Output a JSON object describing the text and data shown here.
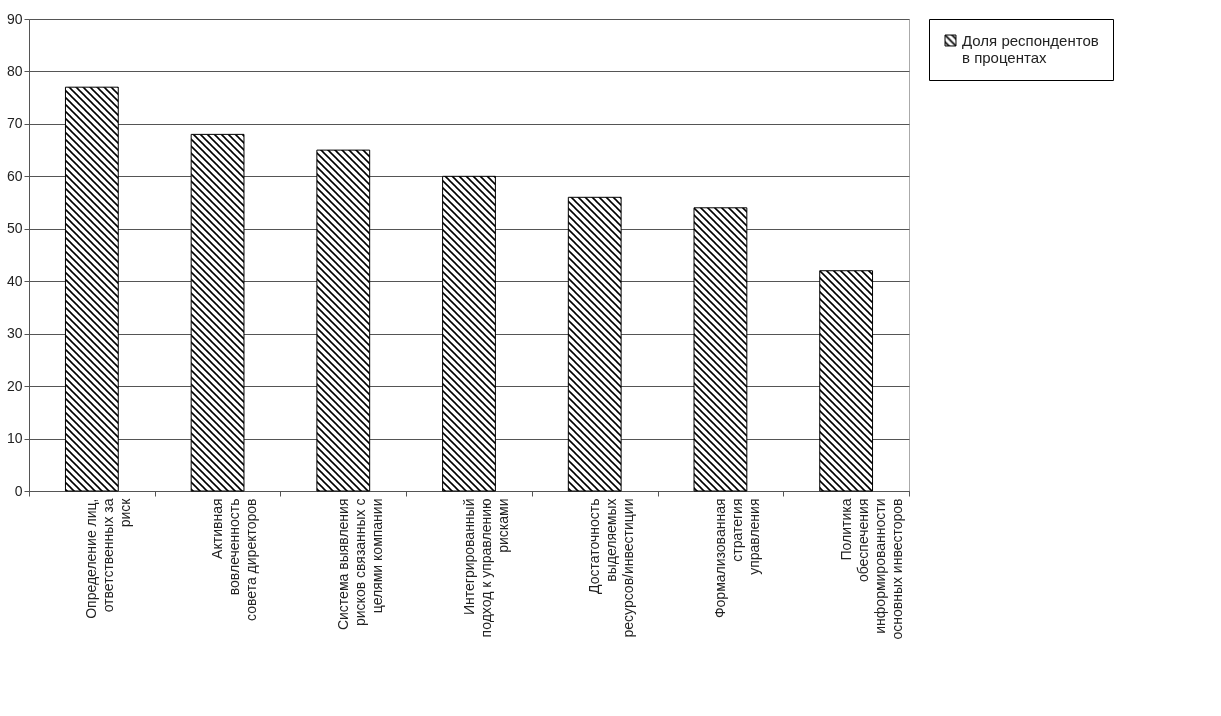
{
  "chart_data": {
    "type": "bar",
    "categories": [
      "Определение лиц, ответственных за риск",
      "Активная вовлеченность совета директоров",
      "Система выявления рисков связанных с целями компании",
      "Интегрированный подход к управлению рисками",
      "Достаточность выделяемых ресурсов/инвестиции",
      "Формализованная стратегия управления",
      "Политика обеспечения информированности основных инвесторов"
    ],
    "series": [
      {
        "name": "Доля респондентов в процентах",
        "color": "#000000",
        "values": [
          77,
          68,
          65,
          60,
          56,
          54,
          42
        ]
      }
    ],
    "ylim": [
      0,
      90
    ],
    "yticks": [
      0,
      10,
      20,
      30,
      40,
      50,
      60,
      70,
      80,
      90
    ],
    "grid": "y",
    "legend": "right"
  }
}
